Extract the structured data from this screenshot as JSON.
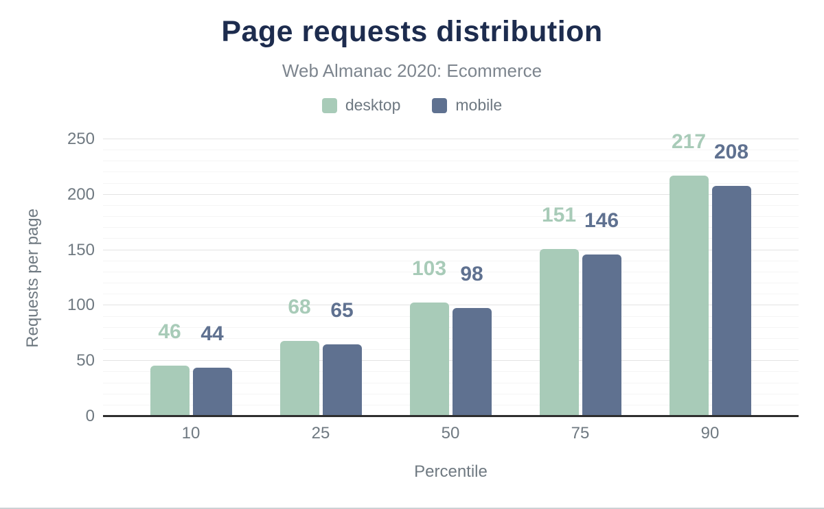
{
  "chart_data": {
    "type": "bar",
    "title": "Page requests distribution",
    "subtitle": "Web Almanac 2020: Ecommerce",
    "xlabel": "Percentile",
    "ylabel": "Requests per page",
    "categories": [
      "10",
      "25",
      "50",
      "75",
      "90"
    ],
    "series": [
      {
        "name": "desktop",
        "color": "#a8cbb8",
        "values": [
          46,
          68,
          103,
          151,
          217
        ]
      },
      {
        "name": "mobile",
        "color": "#5f7190",
        "values": [
          44,
          65,
          98,
          146,
          208
        ]
      }
    ],
    "ylim": [
      0,
      250
    ],
    "yticks": [
      "0",
      "50",
      "100",
      "150",
      "200",
      "250"
    ],
    "ytick_step": 50,
    "minor_gridline_step": 10,
    "grid": "on",
    "legend_position": "top"
  },
  "colors": {
    "title_text": "#1d2c4e",
    "subtitle_text": "#7d858e",
    "axis_text": "#6f7981",
    "axis_line": "#2e2e2e",
    "grid_major": "#e3e3e3",
    "grid_minor": "#f5f5f5",
    "background": "#ffffff",
    "bottom_rule": "#cdd1d4"
  }
}
